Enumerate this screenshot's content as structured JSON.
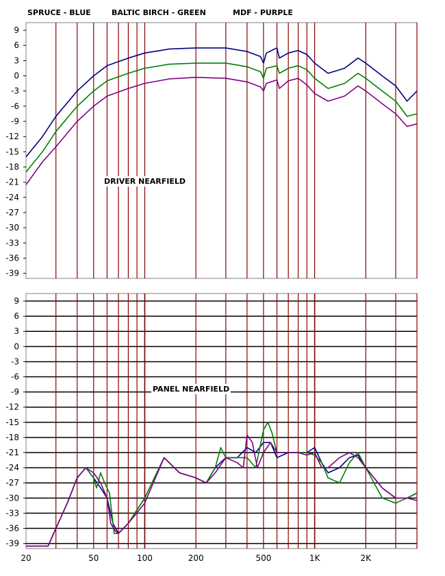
{
  "legend": {
    "line1": "SPRUCE - BLUE",
    "line2": "BALTIC BIRCH - GREEN",
    "line3": "MDF - PURPLE"
  },
  "chart_data": [
    {
      "type": "line",
      "title": "DRIVER NEARFIELD",
      "xscale": "log",
      "xlim": [
        20,
        4000
      ],
      "ylim": [
        -39,
        9
      ],
      "yticks": [
        9,
        6,
        3,
        0,
        -3,
        -6,
        -9,
        -12,
        -15,
        -18,
        -21,
        -24,
        -27,
        -30,
        -33,
        -36,
        -39
      ],
      "xticks": [],
      "grid": "vertical red lines only",
      "marker_lines_hz": [
        30,
        40,
        50,
        60,
        70,
        80,
        90,
        100,
        200,
        300,
        400,
        500,
        600,
        700,
        800,
        900,
        1000,
        2000,
        3000,
        4000
      ],
      "series": [
        {
          "color": "#000080",
          "x": [
            20,
            25,
            30,
            40,
            50,
            60,
            80,
            100,
            140,
            200,
            300,
            400,
            480,
            500,
            520,
            600,
            620,
            700,
            800,
            900,
            1000,
            1200,
            1500,
            1800,
            2000,
            2500,
            3000,
            3500,
            4000
          ],
          "y": [
            -16,
            -12,
            -8,
            -3,
            0,
            2,
            3.5,
            4.5,
            5.3,
            5.5,
            5.5,
            4.8,
            3.8,
            2.5,
            4.5,
            5.5,
            3.5,
            4.5,
            5.0,
            4.2,
            2.5,
            0.5,
            1.5,
            3.5,
            2.5,
            0,
            -2,
            -5,
            -3
          ]
        },
        {
          "color": "#008000",
          "x": [
            20,
            25,
            30,
            40,
            50,
            60,
            80,
            100,
            140,
            200,
            300,
            400,
            480,
            500,
            520,
            600,
            620,
            700,
            800,
            900,
            1000,
            1200,
            1500,
            1800,
            2000,
            2500,
            3000,
            3500,
            4000
          ],
          "y": [
            -19,
            -15,
            -11,
            -6,
            -3,
            -1,
            0.5,
            1.5,
            2.3,
            2.5,
            2.5,
            1.8,
            0.8,
            -0.5,
            1.5,
            2.0,
            0.5,
            1.5,
            2.0,
            1.2,
            -0.5,
            -2.5,
            -1.5,
            0.5,
            -0.5,
            -3,
            -5,
            -8,
            -7.5
          ]
        },
        {
          "color": "#800080",
          "x": [
            20,
            25,
            30,
            40,
            50,
            60,
            80,
            100,
            140,
            200,
            300,
            400,
            480,
            500,
            520,
            600,
            620,
            700,
            800,
            900,
            1000,
            1200,
            1500,
            1800,
            2000,
            2500,
            3000,
            3500,
            4000
          ],
          "y": [
            -21.5,
            -17,
            -14,
            -9,
            -6,
            -4,
            -2.5,
            -1.5,
            -0.6,
            -0.3,
            -0.5,
            -1.2,
            -2.2,
            -3.0,
            -1.5,
            -0.8,
            -2.5,
            -1.0,
            -0.5,
            -1.8,
            -3.5,
            -5.0,
            -4.0,
            -2.0,
            -3.0,
            -5.5,
            -7.5,
            -10,
            -9.5
          ]
        }
      ]
    },
    {
      "type": "line",
      "title": "PANEL NEARFIELD",
      "xscale": "log",
      "xlim": [
        20,
        4000
      ],
      "ylim": [
        -39,
        9
      ],
      "yticks": [
        9,
        6,
        3,
        0,
        -3,
        -6,
        -9,
        -12,
        -15,
        -18,
        -21,
        -24,
        -27,
        -30,
        -33,
        -36,
        -39
      ],
      "xticks": [
        {
          "value": 20,
          "label": "20"
        },
        {
          "value": 50,
          "label": "50"
        },
        {
          "value": 100,
          "label": "100"
        },
        {
          "value": 200,
          "label": "200"
        },
        {
          "value": 500,
          "label": "500"
        },
        {
          "value": 1000,
          "label": "1K"
        },
        {
          "value": 2000,
          "label": "2K"
        }
      ],
      "grid": "black horizontal and vertical grid with red marker lines",
      "marker_lines_hz": [
        30,
        40,
        50,
        60,
        70,
        80,
        90,
        100,
        200,
        300,
        400,
        500,
        600,
        700,
        800,
        900,
        1000,
        2000,
        3000,
        4000
      ],
      "series": [
        {
          "color": "#000080",
          "x": [
            20,
            27,
            30,
            35,
            40,
            45,
            50,
            55,
            60,
            65,
            70,
            80,
            100,
            130,
            160,
            200,
            230,
            260,
            300,
            350,
            400,
            450,
            500,
            550,
            600,
            700,
            800,
            900,
            1000,
            1100,
            1200,
            1400,
            1600,
            1800,
            2000,
            2500,
            3000,
            3500,
            4000
          ],
          "y": [
            -39.5,
            -39.5,
            -36,
            -31,
            -26,
            -24,
            -26,
            -28,
            -30,
            -35,
            -37,
            -35,
            -30,
            -22,
            -25,
            -26,
            -27,
            -24,
            -22,
            -22,
            -20,
            -21,
            -19,
            -19,
            -22,
            -21,
            -21,
            -21,
            -20,
            -23,
            -25,
            -24,
            -22,
            -21.5,
            -24,
            -28,
            -30,
            -30,
            -29
          ]
        },
        {
          "color": "#008000",
          "x": [
            20,
            27,
            30,
            35,
            40,
            45,
            50,
            52,
            55,
            58,
            62,
            66,
            70,
            80,
            100,
            130,
            160,
            200,
            230,
            260,
            280,
            300,
            350,
            400,
            450,
            500,
            530,
            560,
            600,
            700,
            800,
            900,
            1000,
            1100,
            1200,
            1400,
            1600,
            1800,
            2000,
            2500,
            3000,
            3500,
            4000
          ],
          "y": [
            -39.5,
            -39.5,
            -36,
            -31,
            -26,
            -24,
            -26,
            -28,
            -25,
            -27,
            -29,
            -37,
            -37,
            -35,
            -30,
            -22,
            -25,
            -26,
            -27,
            -24,
            -20,
            -22,
            -22,
            -22,
            -24,
            -16.5,
            -15,
            -17,
            -21,
            -21,
            -21,
            -21,
            -21.5,
            -23,
            -26,
            -27,
            -23,
            -21,
            -24,
            -30,
            -31,
            -30,
            -29
          ]
        },
        {
          "color": "#800080",
          "x": [
            20,
            27,
            30,
            35,
            40,
            45,
            50,
            55,
            60,
            63,
            67,
            70,
            80,
            100,
            130,
            160,
            200,
            230,
            260,
            300,
            350,
            380,
            400,
            430,
            460,
            500,
            550,
            600,
            700,
            800,
            900,
            1000,
            1100,
            1200,
            1400,
            1600,
            1800,
            2000,
            2500,
            3000,
            3500,
            4000
          ],
          "y": [
            -39.5,
            -39.5,
            -36,
            -31,
            -26,
            -24,
            -25,
            -27,
            -30,
            -35,
            -36.5,
            -37,
            -35,
            -31,
            -22,
            -25,
            -26,
            -27,
            -25,
            -22,
            -23,
            -24,
            -17.5,
            -19,
            -24,
            -21,
            -19,
            -21,
            -21,
            -21,
            -21.5,
            -21,
            -24,
            -24,
            -22,
            -21,
            -22,
            -24,
            -28,
            -30,
            -30,
            -30.5
          ]
        }
      ]
    }
  ]
}
